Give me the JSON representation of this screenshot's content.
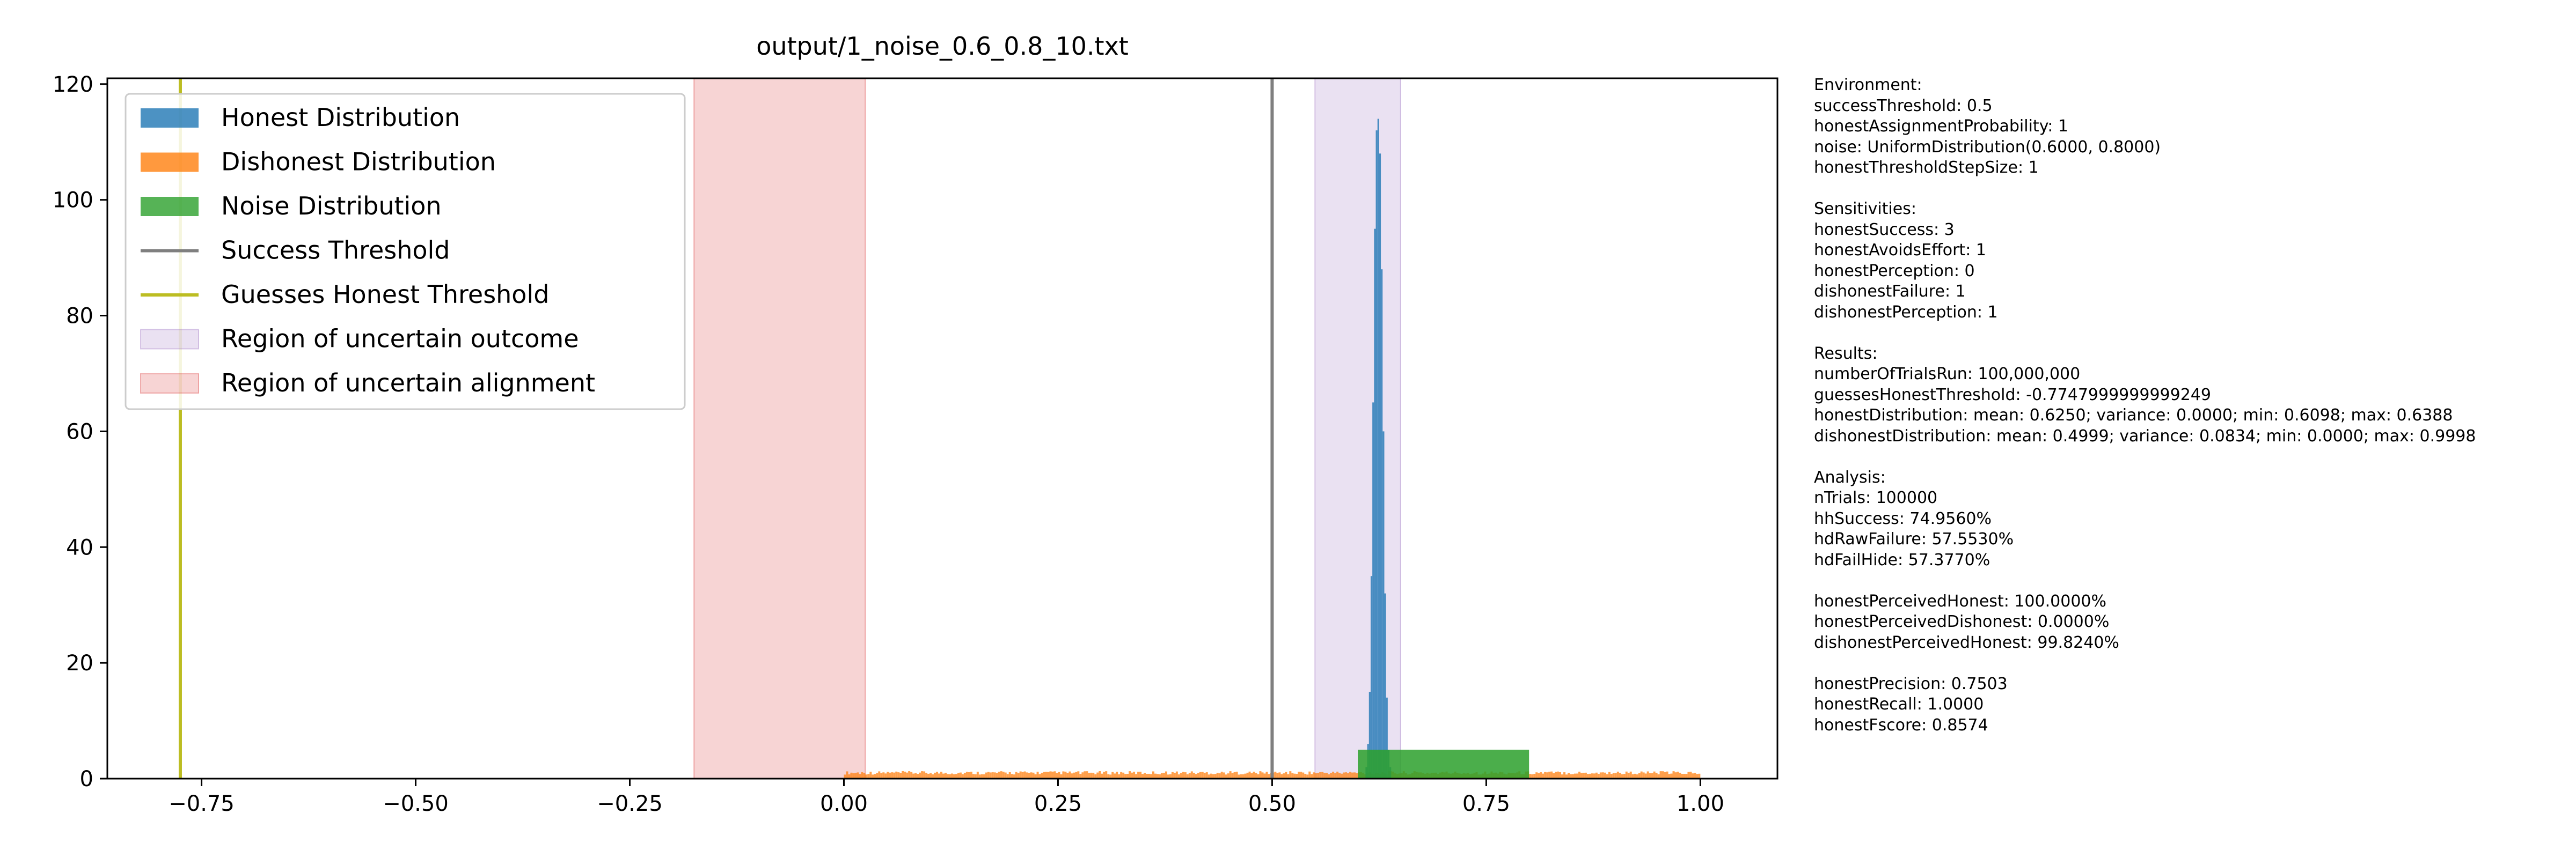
{
  "chart_data": {
    "type": "histogram",
    "title": "output/1_noise_0.6_0.8_10.txt",
    "xlim": [
      -0.86,
      1.09
    ],
    "ylim": [
      0,
      121
    ],
    "xticks": [
      -0.75,
      -0.5,
      -0.25,
      0.0,
      0.25,
      0.5,
      0.75,
      1.0
    ],
    "xtick_labels": [
      "−0.75",
      "−0.50",
      "−0.25",
      "0.00",
      "0.25",
      "0.50",
      "0.75",
      "1.00"
    ],
    "yticks": [
      0,
      20,
      40,
      60,
      80,
      100,
      120
    ],
    "ytick_labels": [
      "0",
      "20",
      "40",
      "60",
      "80",
      "100",
      "120"
    ],
    "grid": false,
    "legend_position": "upper-left",
    "series": [
      {
        "name": "Honest Distribution",
        "kind": "bars",
        "color": "#1f77b4",
        "x": [
          0.61,
          0.612,
          0.614,
          0.616,
          0.618,
          0.62,
          0.622,
          0.624,
          0.626,
          0.628,
          0.63,
          0.632,
          0.634,
          0.636,
          0.638
        ],
        "values": [
          2,
          6,
          15,
          35,
          65,
          95,
          112,
          114,
          108,
          88,
          60,
          32,
          14,
          5,
          2
        ],
        "bin_width": 0.002
      },
      {
        "name": "Dishonest Distribution",
        "kind": "bars",
        "color": "#ff7f0e",
        "range": [
          0.0,
          1.0
        ],
        "approx_density": 1.0
      },
      {
        "name": "Noise Distribution",
        "kind": "bars",
        "color": "#2ca02c",
        "range": [
          0.6,
          0.8
        ],
        "value": 5
      },
      {
        "name": "Success Threshold",
        "kind": "vline",
        "color": "#7f7f7f",
        "x": 0.5
      },
      {
        "name": "Guesses Honest Threshold",
        "kind": "vline",
        "color": "#bcbd22",
        "x": -0.7748
      },
      {
        "name": "Region of uncertain outcome",
        "kind": "span",
        "color": "#9467bd",
        "range": [
          0.55,
          0.65
        ]
      },
      {
        "name": "Region of uncertain alignment",
        "kind": "span",
        "color": "#d62728",
        "range": [
          -0.175,
          0.025
        ]
      }
    ]
  },
  "info_panel": [
    [
      "Environment:",
      "successThreshold: 0.5",
      "honestAssignmentProbability: 1",
      "noise: UniformDistribution(0.6000, 0.8000)",
      "honestThresholdStepSize: 1"
    ],
    [
      "Sensitivities:",
      "honestSuccess: 3",
      "honestAvoidsEffort: 1",
      "honestPerception: 0",
      "dishonestFailure: 1",
      "dishonestPerception: 1"
    ],
    [
      "Results:",
      "numberOfTrialsRun: 100,000,000",
      "guessesHonestThreshold: -0.7747999999999249",
      "honestDistribution: mean: 0.6250; variance: 0.0000; min: 0.6098; max: 0.6388",
      "dishonestDistribution: mean: 0.4999; variance: 0.0834; min: 0.0000; max: 0.9998"
    ],
    [
      "Analysis:",
      "nTrials: 100000",
      "hhSuccess: 74.9560%",
      "hdRawFailure: 57.5530%",
      "hdFailHide: 57.3770%"
    ],
    [
      "honestPerceivedHonest: 100.0000%",
      "honestPerceivedDishonest: 0.0000%",
      "dishonestPerceivedHonest: 99.8240%"
    ],
    [
      "honestPrecision: 0.7503",
      "honestRecall: 1.0000",
      "honestFscore: 0.8574"
    ]
  ]
}
